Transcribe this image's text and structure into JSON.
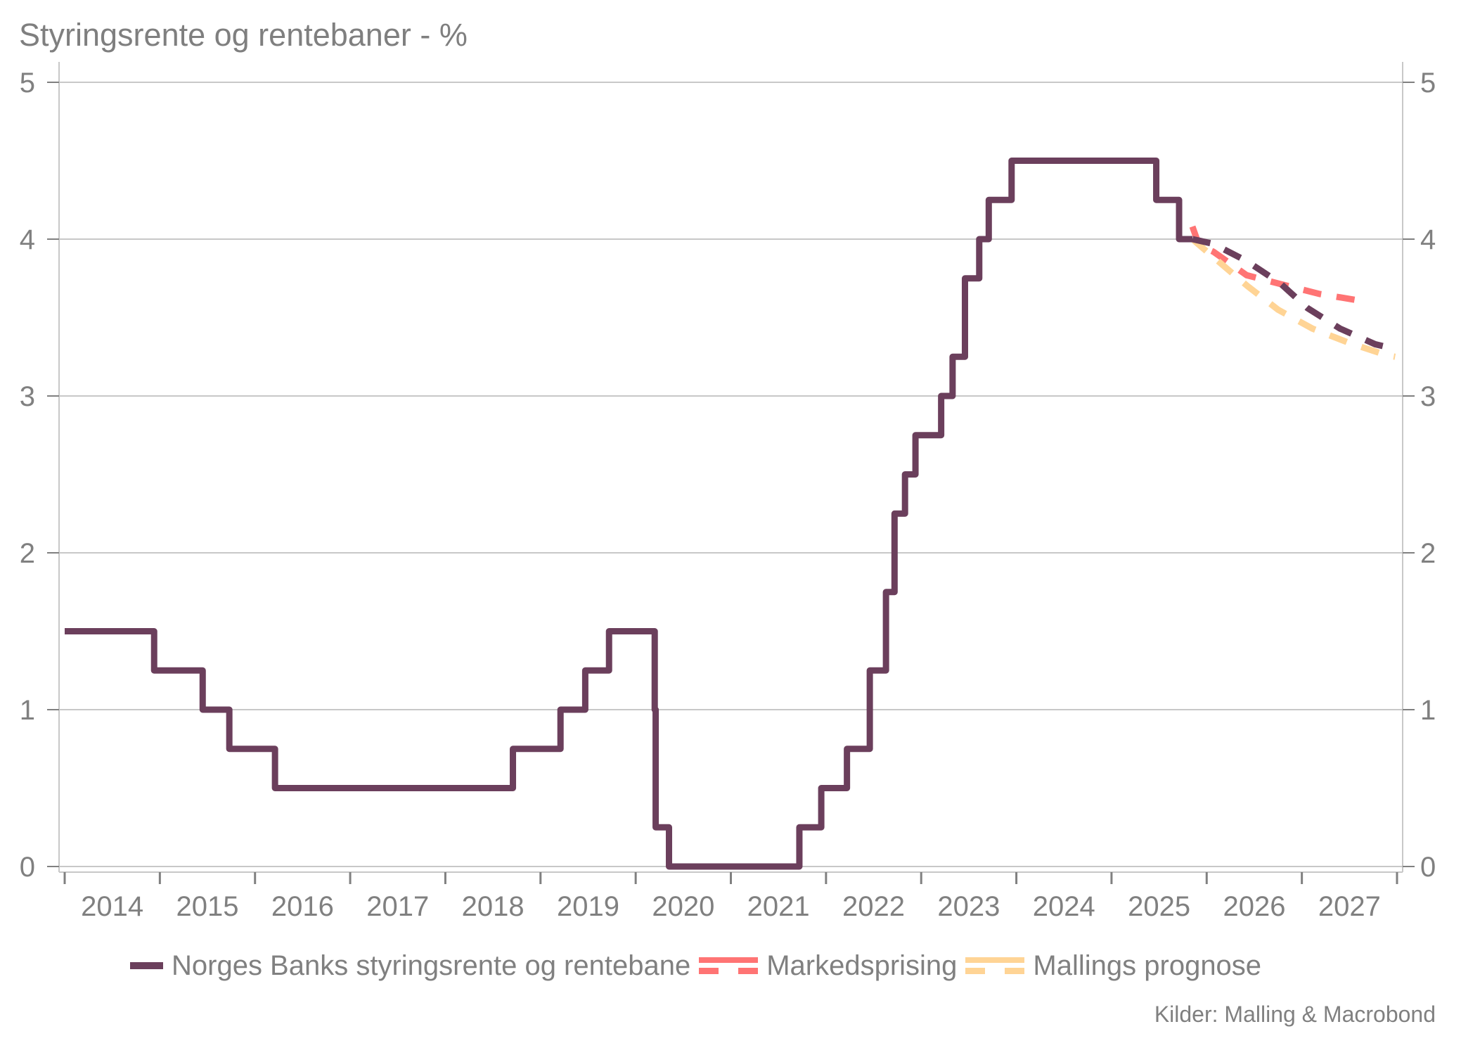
{
  "header": {
    "title": "Styringsrente og rentebaner - %"
  },
  "legend": {
    "items": [
      {
        "label": "Norges Banks styringsrente og rentebane",
        "color": "#6b3f5c",
        "style": "solid"
      },
      {
        "label": "Markedsprising",
        "color": "#ff7474",
        "style": "dashed"
      },
      {
        "label": "Mallings prognose",
        "color": "#ffd495",
        "style": "dashed"
      }
    ]
  },
  "footer": {
    "source": "Kilder: Malling & Macrobond"
  },
  "colors": {
    "policy_rate": "#6b3f5c",
    "market": "#ff7474",
    "malling": "#ffd495",
    "grid": "#c8c8c8",
    "text": "#808080"
  },
  "chart_data": {
    "type": "line",
    "title": "Styringsrente og rentebaner - %",
    "xlabel": "",
    "ylabel": "%",
    "xlim": [
      2014,
      2028
    ],
    "ylim": [
      0,
      5
    ],
    "yticks": [
      0,
      1,
      2,
      3,
      4,
      5
    ],
    "yaxis_both_sides": true,
    "xtick_labels": [
      "2014",
      "2015",
      "2016",
      "2017",
      "2018",
      "2019",
      "2020",
      "2021",
      "2022",
      "2023",
      "2024",
      "2025",
      "2026",
      "2027"
    ],
    "grid": "horizontal",
    "legend_position": "bottom",
    "source": "Kilder: Malling & Macrobond",
    "series": [
      {
        "name": "Norges Banks styringsrente og rentebane",
        "style": "step-solid",
        "color": "#6b3f5c",
        "points": [
          [
            2014.0,
            1.5
          ],
          [
            2014.94,
            1.25
          ],
          [
            2015.45,
            1.0
          ],
          [
            2015.73,
            0.75
          ],
          [
            2016.21,
            0.5
          ],
          [
            2018.71,
            0.75
          ],
          [
            2019.21,
            1.0
          ],
          [
            2019.47,
            1.25
          ],
          [
            2019.72,
            1.5
          ],
          [
            2020.2,
            1.0
          ],
          [
            2020.21,
            0.25
          ],
          [
            2020.35,
            0.0
          ],
          [
            2021.72,
            0.25
          ],
          [
            2021.95,
            0.5
          ],
          [
            2022.22,
            0.75
          ],
          [
            2022.46,
            1.25
          ],
          [
            2022.63,
            1.75
          ],
          [
            2022.72,
            2.25
          ],
          [
            2022.83,
            2.5
          ],
          [
            2022.94,
            2.75
          ],
          [
            2023.21,
            3.0
          ],
          [
            2023.33,
            3.25
          ],
          [
            2023.46,
            3.75
          ],
          [
            2023.61,
            4.0
          ],
          [
            2023.71,
            4.25
          ],
          [
            2023.95,
            4.5
          ],
          [
            2025.47,
            4.25
          ],
          [
            2025.71,
            4.0
          ],
          [
            2025.85,
            4.0
          ]
        ]
      },
      {
        "name": "Norges Banks rentebane (prognose)",
        "style": "dashed",
        "color": "#6b3f5c",
        "points": [
          [
            2025.85,
            4.0
          ],
          [
            2026.07,
            3.97
          ],
          [
            2026.42,
            3.86
          ],
          [
            2026.77,
            3.72
          ],
          [
            2027.06,
            3.56
          ],
          [
            2027.4,
            3.43
          ],
          [
            2027.77,
            3.33
          ],
          [
            2027.98,
            3.3
          ]
        ]
      },
      {
        "name": "Markedsprising",
        "style": "dashed",
        "color": "#ff7474",
        "points": [
          [
            2025.85,
            4.08
          ],
          [
            2025.92,
            3.96
          ],
          [
            2026.07,
            3.92
          ],
          [
            2026.42,
            3.77
          ],
          [
            2026.8,
            3.71
          ],
          [
            2027.19,
            3.65
          ],
          [
            2027.59,
            3.61
          ]
        ]
      },
      {
        "name": "Mallings prognose",
        "style": "dashed",
        "color": "#ffd495",
        "points": [
          [
            2025.85,
            4.0
          ],
          [
            2026.1,
            3.87
          ],
          [
            2026.43,
            3.7
          ],
          [
            2026.75,
            3.55
          ],
          [
            2027.11,
            3.43
          ],
          [
            2027.49,
            3.34
          ],
          [
            2027.89,
            3.26
          ],
          [
            2027.98,
            3.25
          ]
        ]
      }
    ]
  }
}
